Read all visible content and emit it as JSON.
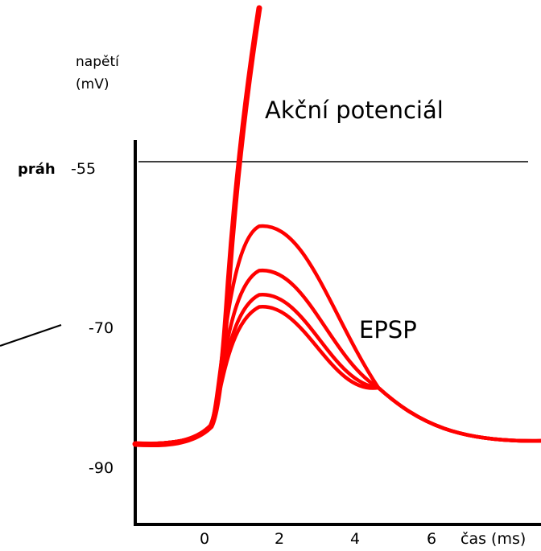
{
  "chart_data": {
    "type": "line",
    "ylabel_line1": "napětí",
    "ylabel_line2": "(mV)",
    "xlabel": "čas (ms)",
    "threshold": {
      "label": "práh",
      "value": -55
    },
    "y_ticks": [
      -55,
      -70,
      -90
    ],
    "x_ticks": [
      0,
      2,
      4,
      6
    ],
    "annotations": {
      "action_potential": "Akční potenciál",
      "epsp": "EPSP"
    },
    "colors": {
      "trace": "#ff0000",
      "axis": "#000000"
    },
    "series": [
      {
        "peak_mV": -63
      },
      {
        "peak_mV": -68.5
      },
      {
        "peak_mV": -71.5
      },
      {
        "peak_mV": -73
      }
    ]
  }
}
